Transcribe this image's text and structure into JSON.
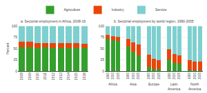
{
  "chart_data": [
    {
      "type": "bar",
      "stacked": true,
      "title": "a. Sectorial employment in Africa, 2008-16",
      "ylabel": "Percent",
      "categories": [
        "2008",
        "2009",
        "2010",
        "2011",
        "2012",
        "2013",
        "2014",
        "2015",
        "2016"
      ],
      "series": [
        {
          "name": "Agriculture",
          "color": "#33a02c",
          "values": [
            54,
            54,
            52,
            53,
            52,
            52,
            52,
            52,
            51
          ]
        },
        {
          "name": "Industry",
          "color": "#e8450a",
          "values": [
            11,
            11,
            11,
            10,
            11,
            11,
            10,
            10,
            10
          ]
        },
        {
          "name": "Service",
          "color": "#7ecfcf",
          "values": [
            35,
            35,
            37,
            37,
            37,
            37,
            38,
            38,
            39
          ]
        }
      ],
      "ylim": [
        0,
        100
      ],
      "yticks": [
        0,
        25,
        50,
        75,
        100
      ],
      "grid": true,
      "legend": "top"
    },
    {
      "type": "bar",
      "stacked": true,
      "title": "b. Sectorial employment by world region, 1990-2005",
      "categories": [
        [
          "Africa",
          "1990"
        ],
        [
          "Africa",
          "2000"
        ],
        [
          "Africa",
          "2005"
        ],
        [
          "Asia",
          "1990"
        ],
        [
          "Asia",
          "2000"
        ],
        [
          "Asia",
          "2005"
        ],
        [
          "Europe",
          "1990"
        ],
        [
          "Europe",
          "2000"
        ],
        [
          "Europe",
          "2005"
        ],
        [
          "Latin America",
          "1990"
        ],
        [
          "Latin America",
          "2000"
        ],
        [
          "Latin America",
          "2005"
        ],
        [
          "North America",
          "1990"
        ],
        [
          "North America",
          "2000"
        ],
        [
          "North America",
          "2005"
        ]
      ],
      "series": [
        {
          "name": "Agriculture",
          "color": "#33a02c",
          "values": [
            72,
            69,
            67,
            55,
            42,
            35,
            9,
            5,
            4,
            26,
            18,
            17,
            3,
            2,
            2
          ]
        },
        {
          "name": "Industry",
          "color": "#e8450a",
          "values": [
            9,
            9,
            9,
            17,
            22,
            24,
            28,
            22,
            20,
            22,
            20,
            18,
            22,
            20,
            19
          ]
        },
        {
          "name": "Service",
          "color": "#7ecfcf",
          "values": [
            19,
            22,
            24,
            28,
            36,
            41,
            63,
            73,
            76,
            52,
            62,
            65,
            75,
            78,
            79
          ]
        }
      ],
      "ylim": [
        0,
        100
      ],
      "yticks": [
        0,
        25,
        50,
        75,
        100
      ],
      "grid": true
    }
  ]
}
